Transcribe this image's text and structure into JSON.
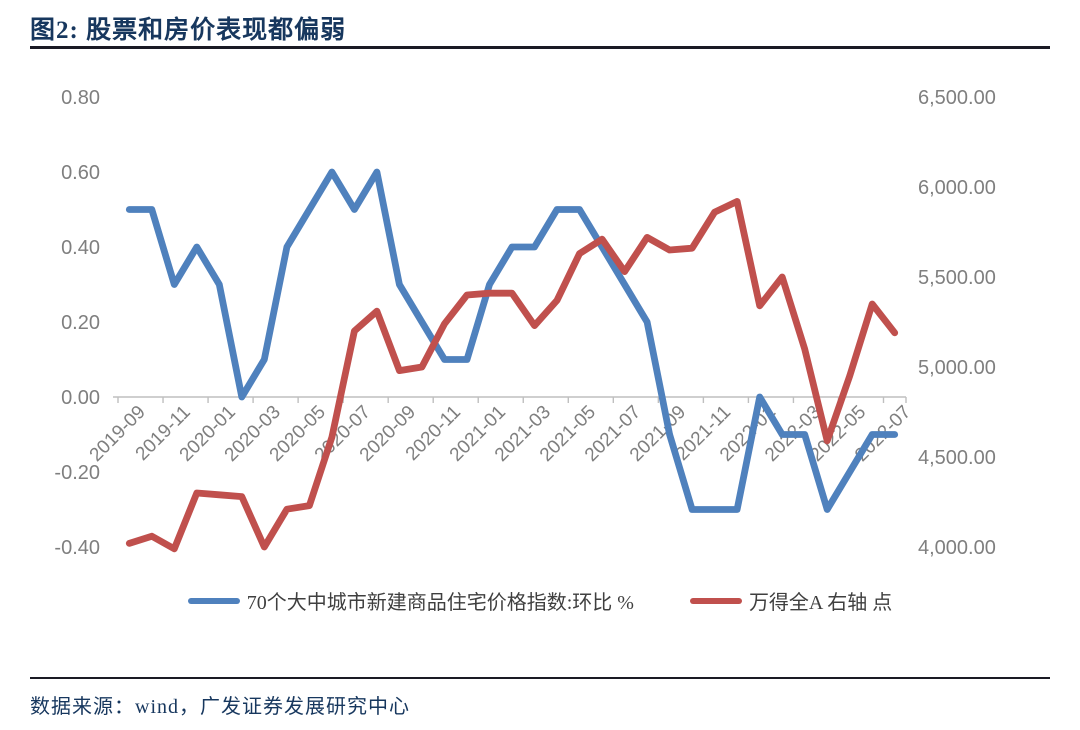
{
  "figure": {
    "title": "图2:  股票和房价表现都偏弱",
    "source_note": "数据来源：wind，广发证券发展研究中心"
  },
  "colors": {
    "title_navy": "#17375E",
    "axis_text_gray": "#7F7F7F",
    "axis_line_gray": "#BFBFBF",
    "blue_series": "#4F81BD",
    "red_series": "#C0504D",
    "legend_text": "#3F3F3F"
  },
  "chart_data": {
    "type": "line",
    "categories": [
      "2019-09",
      "2019-10",
      "2019-11",
      "2019-12",
      "2020-01",
      "2020-02",
      "2020-03",
      "2020-04",
      "2020-05",
      "2020-06",
      "2020-07",
      "2020-08",
      "2020-09",
      "2020-10",
      "2020-11",
      "2020-12",
      "2021-01",
      "2021-02",
      "2021-03",
      "2021-04",
      "2021-05",
      "2021-06",
      "2021-07",
      "2021-08",
      "2021-09",
      "2021-10",
      "2021-11",
      "2021-12",
      "2022-01",
      "2022-02",
      "2022-03",
      "2022-04",
      "2022-05",
      "2022-06",
      "2022-07"
    ],
    "x_label_interval": 2,
    "series": [
      {
        "name": "70个大中城市新建商品住宅价格指数:环比 %",
        "axis": "left",
        "color": "#4F81BD",
        "values": [
          0.5,
          0.5,
          0.3,
          0.4,
          0.3,
          0.0,
          0.1,
          0.4,
          0.5,
          0.6,
          0.5,
          0.6,
          0.3,
          0.2,
          0.1,
          0.1,
          0.3,
          0.4,
          0.4,
          0.5,
          0.5,
          0.4,
          0.3,
          0.2,
          -0.1,
          -0.3,
          -0.3,
          -0.3,
          0.0,
          -0.1,
          -0.1,
          -0.3,
          -0.2,
          -0.1,
          -0.1
        ]
      },
      {
        "name": "万得全A 右轴 点",
        "axis": "right",
        "color": "#C0504D",
        "values": [
          4020,
          4060,
          3990,
          4300,
          4290,
          4280,
          4000,
          4210,
          4230,
          4610,
          5200,
          5310,
          4980,
          5000,
          5240,
          5400,
          5410,
          5410,
          5230,
          5370,
          5630,
          5710,
          5530,
          5720,
          5650,
          5660,
          5860,
          5920,
          5340,
          5500,
          5100,
          4590,
          4950,
          5350,
          5190
        ]
      }
    ],
    "left_axis": {
      "min": -0.4,
      "max": 0.8,
      "step": 0.2,
      "tick_labels": [
        "0.80",
        "0.60",
        "0.40",
        "0.20",
        "0.00",
        "-0.20",
        "-0.40"
      ]
    },
    "right_axis": {
      "min": 4000,
      "max": 6500,
      "step": 500,
      "tick_labels": [
        "6,500.00",
        "6,000.00",
        "5,500.00",
        "5,000.00",
        "4,500.00",
        "4,000.00"
      ]
    },
    "legend_position": "bottom",
    "grid": false,
    "baseline_value": 0.0
  }
}
